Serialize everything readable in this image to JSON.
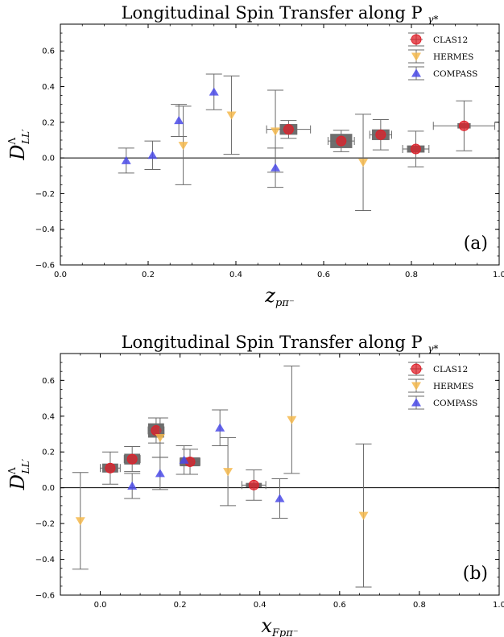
{
  "chart_data": [
    {
      "type": "scatter",
      "title": "Longitudinal Spin Transfer along P",
      "title_subscript": "γ*",
      "xlabel": "z",
      "xlabel_subscript": "pπ⁻",
      "ylabel": "D",
      "ylabel_sup": "Λ",
      "ylabel_subscript": "LL′",
      "xlim": [
        0.0,
        1.0
      ],
      "ylim": [
        -0.6,
        0.75
      ],
      "xticks": [
        0.0,
        0.2,
        0.4,
        0.6,
        0.8,
        1.0
      ],
      "xtick_labels": [
        "0.0",
        "0.2",
        "0.4",
        "0.6",
        "0.8",
        "1.0"
      ],
      "yticks": [
        -0.6,
        -0.4,
        -0.2,
        0.0,
        0.2,
        0.4,
        0.6
      ],
      "ytick_labels": [
        "−0.6",
        "−0.4",
        "−0.2",
        "0.0",
        "0.2",
        "0.4",
        "0.6"
      ],
      "panel_label": "(a)",
      "legend_position": "top-right",
      "series": [
        {
          "name": "CLAS12",
          "marker": "circle",
          "color": "#e0202a",
          "points": [
            {
              "x": 0.52,
              "y": 0.16,
              "yerr": 0.05,
              "xerr": 0.05,
              "sys": 0.03,
              "sysw": 0.02
            },
            {
              "x": 0.64,
              "y": 0.095,
              "yerr": 0.06,
              "xerr": 0.03,
              "sys": 0.04,
              "sysw": 0.025
            },
            {
              "x": 0.73,
              "y": 0.13,
              "yerr": 0.085,
              "xerr": 0.025,
              "sys": 0.03,
              "sysw": 0.02
            },
            {
              "x": 0.81,
              "y": 0.05,
              "yerr": 0.1,
              "xerr": 0.03,
              "sys": 0.02,
              "sysw": 0.02
            },
            {
              "x": 0.92,
              "y": 0.18,
              "yerr": 0.14,
              "xerr": 0.07,
              "sys": 0.015,
              "sysw": 0.015
            }
          ]
        },
        {
          "name": "HERMES",
          "marker": "triangle-down",
          "color": "#f5b84c",
          "points": [
            {
              "x": 0.28,
              "y": 0.07,
              "yerr": 0.22
            },
            {
              "x": 0.39,
              "y": 0.24,
              "yerr": 0.22
            },
            {
              "x": 0.49,
              "y": 0.15,
              "yerr": 0.23
            },
            {
              "x": 0.69,
              "y": -0.025,
              "yerr": 0.27
            }
          ]
        },
        {
          "name": "COMPASS",
          "marker": "triangle-up",
          "color": "#4a4ae8",
          "points": [
            {
              "x": 0.15,
              "y": -0.015,
              "yerr": 0.07
            },
            {
              "x": 0.21,
              "y": 0.015,
              "yerr": 0.08
            },
            {
              "x": 0.27,
              "y": 0.21,
              "yerr": 0.09
            },
            {
              "x": 0.35,
              "y": 0.37,
              "yerr": 0.1
            },
            {
              "x": 0.49,
              "y": -0.055,
              "yerr": 0.11
            }
          ]
        }
      ]
    },
    {
      "type": "scatter",
      "title": "Longitudinal Spin Transfer along P",
      "title_subscript": "γ*",
      "xlabel": "x",
      "xlabel_subscript": "Fpπ⁻",
      "ylabel": "D",
      "ylabel_sup": "Λ",
      "ylabel_subscript": "LL′",
      "xlim": [
        -0.1,
        1.0
      ],
      "ylim": [
        -0.6,
        0.75
      ],
      "xticks": [
        0.0,
        0.2,
        0.4,
        0.6,
        0.8,
        1.0
      ],
      "xtick_labels": [
        "0.0",
        "0.2",
        "0.4",
        "0.6",
        "0.8",
        "1.0"
      ],
      "yticks": [
        -0.6,
        -0.4,
        -0.2,
        0.0,
        0.2,
        0.4,
        0.6
      ],
      "ytick_labels": [
        "−0.6",
        "−0.4",
        "−0.2",
        "0.0",
        "0.2",
        "0.4",
        "0.6"
      ],
      "panel_label": "(b)",
      "legend_position": "top-right",
      "series": [
        {
          "name": "CLAS12",
          "marker": "circle",
          "color": "#e0202a",
          "points": [
            {
              "x": 0.025,
              "y": 0.11,
              "yerr": 0.09,
              "xerr": 0.025,
              "sys": 0.025,
              "sysw": 0.02
            },
            {
              "x": 0.08,
              "y": 0.16,
              "yerr": 0.07,
              "xerr": 0.02,
              "sys": 0.03,
              "sysw": 0.02
            },
            {
              "x": 0.14,
              "y": 0.32,
              "yerr": 0.07,
              "xerr": 0.02,
              "sys": 0.04,
              "sysw": 0.02
            },
            {
              "x": 0.225,
              "y": 0.145,
              "yerr": 0.07,
              "xerr": 0.025,
              "sys": 0.025,
              "sysw": 0.025
            },
            {
              "x": 0.385,
              "y": 0.015,
              "yerr": 0.085,
              "xerr": 0.03,
              "sys": 0.012,
              "sysw": 0.02
            }
          ]
        },
        {
          "name": "HERMES",
          "marker": "triangle-down",
          "color": "#f5b84c",
          "points": [
            {
              "x": -0.05,
              "y": -0.185,
              "yerr": 0.27
            },
            {
              "x": 0.15,
              "y": 0.28,
              "yerr": 0.11
            },
            {
              "x": 0.32,
              "y": 0.09,
              "yerr": 0.19
            },
            {
              "x": 0.48,
              "y": 0.38,
              "yerr": 0.3
            },
            {
              "x": 0.66,
              "y": -0.155,
              "yerr": 0.4
            }
          ]
        },
        {
          "name": "COMPASS",
          "marker": "triangle-up",
          "color": "#4a4ae8",
          "points": [
            {
              "x": 0.08,
              "y": 0.01,
              "yerr": 0.07
            },
            {
              "x": 0.15,
              "y": 0.08,
              "yerr": 0.09
            },
            {
              "x": 0.21,
              "y": 0.155,
              "yerr": 0.08
            },
            {
              "x": 0.3,
              "y": 0.335,
              "yerr": 0.1
            },
            {
              "x": 0.45,
              "y": -0.06,
              "yerr": 0.11
            }
          ]
        }
      ]
    }
  ]
}
